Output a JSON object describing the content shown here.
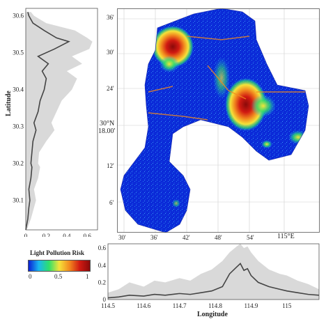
{
  "left_profile": {
    "ylabel": "Latitude",
    "y_ticks": [
      "30.6",
      "30.5",
      "30.4",
      "30.3",
      "30.2",
      "30.1"
    ],
    "x_ticks": [
      "0",
      "0.2",
      "0.4",
      "0.6"
    ]
  },
  "bottom_profile": {
    "xlabel": "Longitude",
    "x_ticks": [
      "114.5",
      "114.6",
      "114.7",
      "114.8",
      "114.9",
      "115"
    ],
    "y_ticks": [
      "0.6",
      "0.4",
      "0.2",
      "0"
    ]
  },
  "map": {
    "top_ticks": [
      "36'",
      "30'",
      "24'",
      "18'",
      "12'",
      "6'"
    ],
    "bottom_ticks": [
      "30'",
      "36'",
      "42'",
      "48'",
      "54'",
      "115°E"
    ],
    "lat_label_1": "30°N",
    "lat_label_2": "18.00'"
  },
  "legend": {
    "title": "Light Pollution Risk",
    "ticks": [
      "0",
      "0.5",
      "1"
    ],
    "colors": [
      "#0a1fd6",
      "#19b7f0",
      "#2ee06a",
      "#f5e33a",
      "#f28a1f",
      "#d11a12",
      "#8a0a0a"
    ]
  },
  "chart_data": [
    {
      "type": "area",
      "orientation": "horizontal",
      "x_label": "",
      "y_label": "Latitude",
      "ylim": [
        30.02,
        30.62
      ],
      "xlim": [
        0,
        0.7
      ],
      "series_mean": {
        "y": [
          30.02,
          30.05,
          30.08,
          30.1,
          30.13,
          30.16,
          30.19,
          30.2,
          30.23,
          30.26,
          30.29,
          30.31,
          30.34,
          30.37,
          30.4,
          30.43,
          30.45,
          30.47,
          30.49,
          30.51,
          30.53,
          30.54,
          30.56,
          30.58,
          30.6,
          30.61
        ],
        "x": [
          0.0,
          0.02,
          0.03,
          0.04,
          0.03,
          0.05,
          0.06,
          0.05,
          0.06,
          0.07,
          0.1,
          0.08,
          0.12,
          0.14,
          0.18,
          0.2,
          0.16,
          0.22,
          0.12,
          0.28,
          0.42,
          0.3,
          0.18,
          0.07,
          0.03,
          0.02
        ]
      },
      "series_band_upper": {
        "y": [
          30.02,
          30.05,
          30.08,
          30.1,
          30.13,
          30.16,
          30.19,
          30.2,
          30.23,
          30.26,
          30.29,
          30.31,
          30.34,
          30.37,
          30.4,
          30.43,
          30.45,
          30.47,
          30.49,
          30.51,
          30.53,
          30.54,
          30.56,
          30.58,
          30.6,
          30.61
        ],
        "x": [
          0.01,
          0.05,
          0.08,
          0.1,
          0.08,
          0.12,
          0.14,
          0.12,
          0.13,
          0.2,
          0.28,
          0.25,
          0.3,
          0.35,
          0.45,
          0.5,
          0.4,
          0.55,
          0.45,
          0.62,
          0.65,
          0.6,
          0.48,
          0.2,
          0.08,
          0.05
        ]
      }
    },
    {
      "type": "area",
      "x_label": "Longitude",
      "xlim": [
        114.5,
        115.09
      ],
      "ylim": [
        0,
        0.65
      ],
      "series_mean": {
        "x": [
          114.5,
          114.53,
          114.56,
          114.6,
          114.63,
          114.66,
          114.7,
          114.73,
          114.76,
          114.79,
          114.82,
          114.84,
          114.86,
          114.87,
          114.88,
          114.89,
          114.9,
          114.92,
          114.95,
          114.98,
          115.0,
          115.03,
          115.06,
          115.09
        ],
        "y": [
          0.02,
          0.03,
          0.05,
          0.04,
          0.06,
          0.05,
          0.07,
          0.06,
          0.08,
          0.1,
          0.15,
          0.3,
          0.38,
          0.42,
          0.34,
          0.36,
          0.28,
          0.2,
          0.15,
          0.12,
          0.1,
          0.08,
          0.06,
          0.05
        ]
      },
      "series_band_upper": {
        "x": [
          114.5,
          114.53,
          114.56,
          114.6,
          114.63,
          114.66,
          114.7,
          114.73,
          114.76,
          114.79,
          114.82,
          114.84,
          114.86,
          114.87,
          114.88,
          114.89,
          114.9,
          114.92,
          114.95,
          114.98,
          115.0,
          115.03,
          115.06,
          115.09
        ],
        "y": [
          0.08,
          0.12,
          0.2,
          0.15,
          0.22,
          0.2,
          0.25,
          0.22,
          0.3,
          0.35,
          0.45,
          0.55,
          0.62,
          0.65,
          0.6,
          0.62,
          0.55,
          0.45,
          0.35,
          0.3,
          0.28,
          0.22,
          0.18,
          0.12
        ]
      }
    }
  ]
}
